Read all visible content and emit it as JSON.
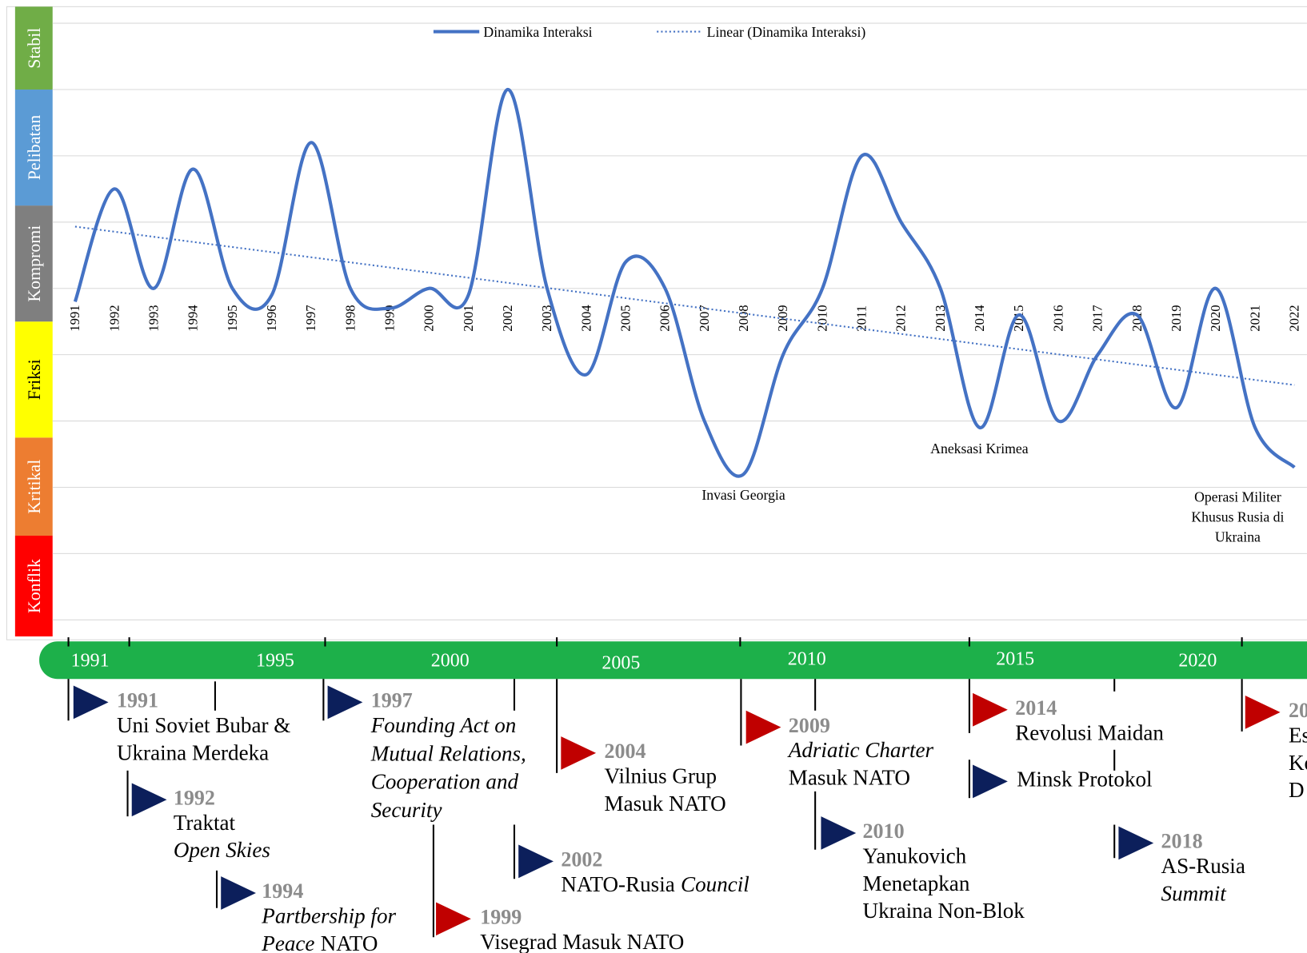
{
  "chart_data": {
    "type": "line",
    "categories": [
      "1991",
      "1992",
      "1993",
      "1994",
      "1995",
      "1996",
      "1997",
      "1998",
      "1999",
      "2000",
      "2001",
      "2002",
      "2003",
      "2004",
      "2005",
      "2006",
      "2007",
      "2008",
      "2009",
      "2010",
      "2011",
      "2012",
      "2013",
      "2014",
      "2015",
      "2016",
      "2017",
      "2018",
      "2019",
      "2020",
      "2021",
      "2022"
    ],
    "series": [
      {
        "name": "Dinamika Interaksi",
        "color": "#4472c4",
        "values": [
          4.8,
          6.5,
          5.0,
          6.8,
          5.0,
          4.9,
          7.2,
          5.0,
          4.7,
          5.0,
          4.9,
          8.0,
          5.0,
          3.7,
          5.4,
          5.0,
          3.0,
          2.2,
          4.0,
          5.0,
          7.0,
          6.0,
          5.0,
          2.9,
          4.6,
          3.0,
          4.0,
          4.6,
          3.2,
          5.0,
          2.9,
          2.3
        ]
      }
    ],
    "trendline": {
      "name": "Linear (Dinamika Interaksi)",
      "color": "#4472c4"
    },
    "ylim": [
      -0.25,
      9.25
    ],
    "yticks": [
      0,
      1,
      2,
      3,
      4,
      5,
      6,
      7,
      8,
      9
    ],
    "grid": true,
    "legend": "top",
    "bands": [
      {
        "label": "Konflik",
        "from": -0.25,
        "to": 1.27,
        "color": "#ff0000"
      },
      {
        "label": "Kritikal",
        "from": 1.27,
        "to": 2.75,
        "color": "#ed7d31"
      },
      {
        "label": "Friksi",
        "from": 2.75,
        "to": 4.5,
        "color": "#ffff00"
      },
      {
        "label": "Kompromi",
        "from": 4.5,
        "to": 6.25,
        "color": "#7f7f7f"
      },
      {
        "label": "Pelibatan",
        "from": 6.25,
        "to": 8,
        "color": "#5b9bd5"
      },
      {
        "label": "Stabil",
        "from": 8,
        "to": 9.25,
        "color": "#70ad47"
      }
    ],
    "annotations": [
      {
        "category": "2008",
        "lines": [
          "Invasi Georgia"
        ]
      },
      {
        "category": "2014",
        "lines": [
          "Aneksasi Krimea"
        ]
      },
      {
        "category": "2022",
        "lines": [
          "Operasi Militer",
          "Khusus Rusia di",
          "Ukraina"
        ]
      }
    ]
  },
  "timeline": {
    "labels": [
      "1991",
      "1995",
      "2000",
      "2005",
      "2010",
      "2015",
      "2020"
    ],
    "events": [
      {
        "year": "1991",
        "color": "navy",
        "lines": [
          [
            "Uni Soviet Bubar &"
          ],
          [
            "Ukraina Merdeka"
          ]
        ]
      },
      {
        "year": "1992",
        "color": "navy",
        "lines": [
          [
            "Traktat"
          ],
          [
            {
              "em": "Open Skies"
            }
          ]
        ]
      },
      {
        "year": "1994",
        "color": "navy",
        "lines": [
          [
            {
              "em": "Partbership for"
            }
          ],
          [
            {
              "em": "Peace"
            },
            "NATO"
          ]
        ]
      },
      {
        "year": "1997",
        "color": "navy",
        "lines": [
          [
            {
              "em": "Founding Act on"
            }
          ],
          [
            {
              "em": "Mutual Relations,"
            }
          ],
          [
            {
              "em": "Cooperation and"
            }
          ],
          [
            {
              "em": "Security"
            }
          ]
        ]
      },
      {
        "year": "1999",
        "color": "red",
        "lines": [
          [
            "Visegrad Masuk NATO"
          ]
        ]
      },
      {
        "year": "2002",
        "color": "navy",
        "lines": [
          [
            "NATO-Rusia",
            {
              "em": "Council"
            }
          ]
        ]
      },
      {
        "year": "2004",
        "color": "red",
        "lines": [
          [
            "Vilnius Grup"
          ],
          [
            "Masuk NATO"
          ]
        ]
      },
      {
        "year": "2009",
        "color": "red",
        "lines": [
          [
            {
              "em": "Adriatic Charter"
            }
          ],
          [
            "Masuk NATO"
          ]
        ]
      },
      {
        "year": "2010",
        "color": "navy",
        "lines": [
          [
            "Yanukovich"
          ],
          [
            "Menetapkan"
          ],
          [
            "Ukraina Non-Blok"
          ]
        ]
      },
      {
        "year": "2014",
        "color": "red",
        "lines": [
          [
            "Revolusi Maidan"
          ]
        ]
      },
      {
        "color": "navy",
        "lines": [
          [
            "Minsk Protokol"
          ]
        ]
      },
      {
        "year": "2018",
        "color": "navy",
        "lines": [
          [
            "AS-Rusia"
          ],
          [
            {
              "em": "Summit"
            }
          ]
        ]
      },
      {
        "year": "20",
        "color": "red",
        "lines": [
          [
            "Es"
          ],
          [
            "Ko"
          ],
          [
            "D"
          ]
        ]
      }
    ]
  }
}
